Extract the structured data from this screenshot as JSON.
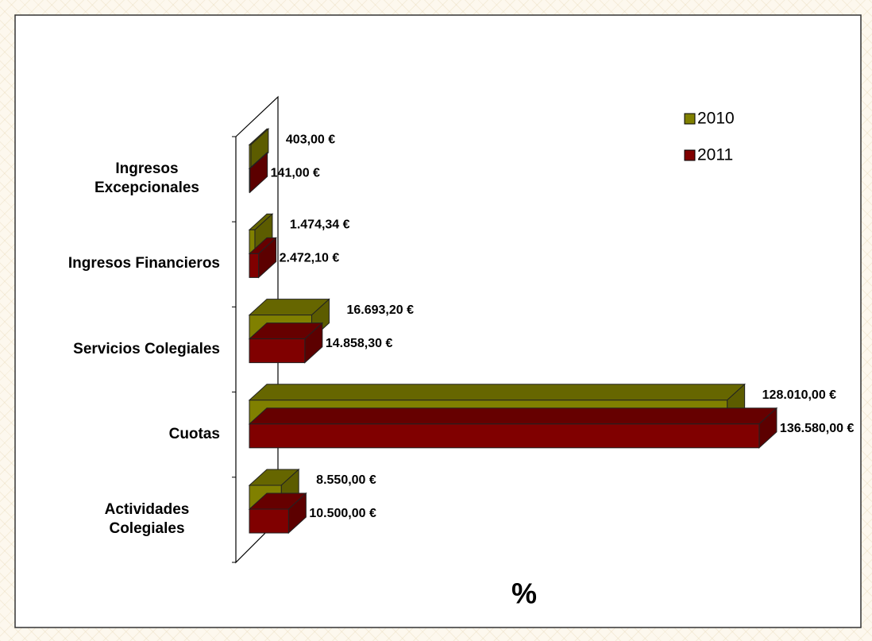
{
  "chart_data": {
    "type": "bar3d-horizontal",
    "x_label": "%",
    "categories": [
      "Actividades Colegiales",
      "Cuotas",
      "Servicios Colegiales",
      "Ingresos Financieros",
      "Ingresos Excepcionales"
    ],
    "series": [
      {
        "name": "2010",
        "color": "#808000",
        "values": [
          8550,
          128010,
          16693.2,
          1474.34,
          403
        ],
        "value_labels": [
          "8.550,00 €",
          "128.010,00 €",
          "16.693,20 €",
          "1.474,34 €",
          "403,00 €"
        ]
      },
      {
        "name": "2011",
        "color": "#800000",
        "values": [
          10500,
          136580,
          14858.3,
          2472.1,
          141
        ],
        "value_labels": [
          "10.500,00 €",
          "136.580,00 €",
          "14.858,30 €",
          "2.472,10 €",
          "141,00 €"
        ]
      }
    ],
    "xlim": [
      0,
      140000
    ],
    "legend": "upper right"
  }
}
